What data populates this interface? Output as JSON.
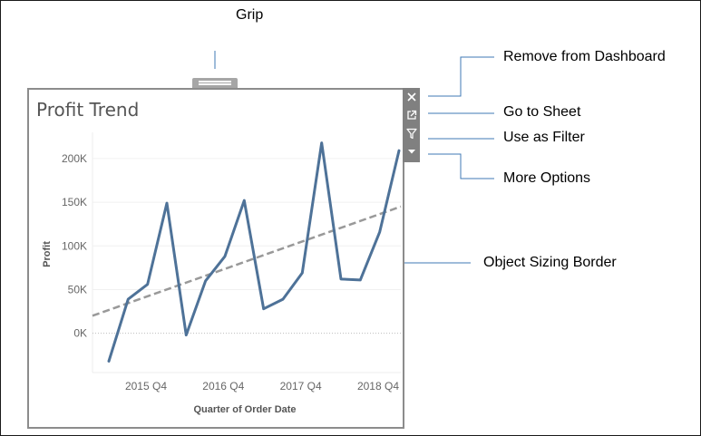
{
  "callouts": {
    "grip": "Grip",
    "remove": "Remove from Dashboard",
    "goto": "Go to Sheet",
    "filter": "Use as Filter",
    "more": "More Options",
    "border": "Object Sizing Border"
  },
  "toolbar": {
    "icons": [
      "close-icon",
      "external-link-icon",
      "funnel-icon",
      "caret-down-icon"
    ]
  },
  "colors": {
    "line": "#4e7298",
    "trend": "#999999",
    "toolbar": "#808080",
    "grip": "#a6a6a6",
    "callout_line": "#3f7ab5"
  },
  "chart_data": {
    "type": "line",
    "title": "Profit Trend",
    "xlabel": "Quarter of Order Date",
    "ylabel": "Profit",
    "y_ticks": [
      0,
      50000,
      100000,
      150000,
      200000
    ],
    "y_tick_labels": [
      "0K",
      "50K",
      "100K",
      "150K",
      "200K"
    ],
    "ylim": [
      -45000,
      230000
    ],
    "x_tick_labels": [
      "2015 Q4",
      "2016 Q4",
      "2017 Q4",
      "2018 Q4"
    ],
    "x_tick_positions": [
      3,
      7,
      11,
      15
    ],
    "series": [
      {
        "values": [
          -32000,
          39000,
          56000,
          149000,
          -2000,
          60000,
          88000,
          152000,
          28000,
          39000,
          69000,
          218000,
          62000,
          61000,
          116000,
          209000
        ]
      }
    ],
    "trend_line": {
      "start": 20000,
      "end": 145000
    },
    "grid": true
  }
}
